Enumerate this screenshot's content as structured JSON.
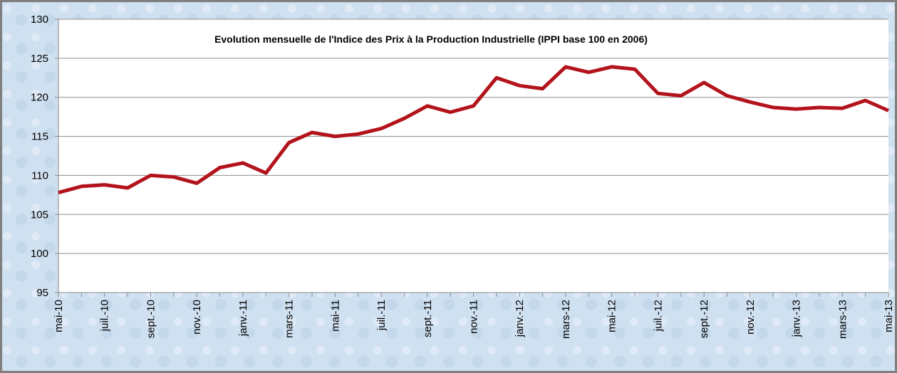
{
  "chart_data": {
    "type": "line",
    "title": "Evolution mensuelle de l'Indice des Prix à la Production Industrielle (IPPI base 100 en 2006)",
    "categories": [
      "mai-10",
      null,
      "juil.-10",
      null,
      "sept.-10",
      null,
      "nov.-10",
      null,
      "janv.-11",
      null,
      "mars-11",
      null,
      "mai-11",
      null,
      "juil.-11",
      null,
      "sept.-11",
      null,
      "nov.-11",
      null,
      "janv.-12",
      null,
      "mars-12",
      null,
      "mai-12",
      null,
      "juil.-12",
      null,
      "sept.-12",
      null,
      "nov.-12",
      null,
      "janv.-13",
      null,
      "mars-13",
      null,
      "mai-13"
    ],
    "values": [
      107.8,
      108.6,
      108.8,
      108.4,
      110.0,
      109.8,
      109.0,
      111.0,
      111.6,
      110.3,
      114.2,
      115.5,
      115.0,
      115.3,
      116.0,
      117.3,
      118.9,
      118.1,
      118.9,
      122.5,
      121.5,
      121.1,
      123.9,
      123.2,
      123.9,
      123.6,
      120.5,
      120.2,
      121.9,
      120.2,
      119.4,
      118.7,
      118.5,
      118.7,
      118.6,
      119.6,
      118.3
    ],
    "color": "#b3131b",
    "ylim": [
      95,
      130
    ],
    "yticks": [
      95,
      100,
      105,
      110,
      115,
      120,
      125,
      130
    ],
    "grid": true
  }
}
